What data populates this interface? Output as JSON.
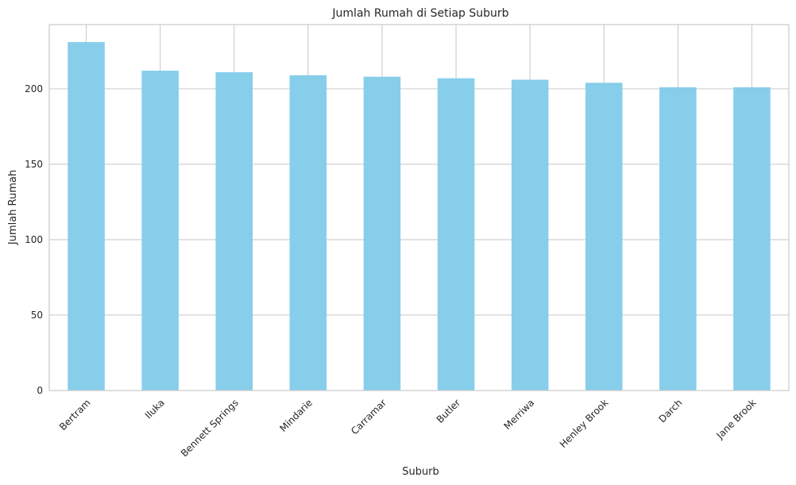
{
  "chart_data": {
    "type": "bar",
    "title": "Jumlah Rumah di Setiap Suburb",
    "xlabel": "Suburb",
    "ylabel": "Jumlah Rumah",
    "categories": [
      "Bertram",
      "Iluka",
      "Bennett Springs",
      "Mindarie",
      "Carramar",
      "Butler",
      "Merriwa",
      "Henley Brook",
      "Darch",
      "Jane Brook"
    ],
    "values": [
      231,
      212,
      211,
      209,
      208,
      207,
      206,
      204,
      201,
      201
    ],
    "ylim": [
      0,
      242.55
    ],
    "yticks": [
      0,
      50,
      100,
      150,
      200
    ],
    "grid": true,
    "bar_color": "#87CEEB",
    "grid_color": "#cccccc",
    "spine_color": "#cccccc"
  }
}
